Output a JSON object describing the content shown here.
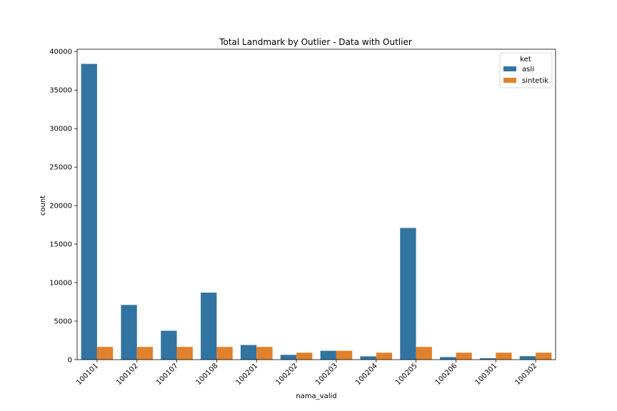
{
  "chart_data": {
    "type": "bar",
    "title": "Total Landmark by Outlier - Data with Outlier",
    "xlabel": "nama_valid",
    "ylabel": "count",
    "categories": [
      "100101",
      "100102",
      "100107",
      "100108",
      "100201",
      "100202",
      "100203",
      "100204",
      "100205",
      "100206",
      "100301",
      "100302"
    ],
    "series": [
      {
        "name": "asli",
        "color": "#3274a1",
        "values": [
          38400,
          7100,
          3750,
          8700,
          1900,
          620,
          1150,
          430,
          17100,
          330,
          180,
          450
        ]
      },
      {
        "name": "sintetik",
        "color": "#e1812c",
        "values": [
          1650,
          1650,
          1650,
          1650,
          1650,
          900,
          1150,
          900,
          1650,
          900,
          900,
          900
        ]
      }
    ],
    "ylim": [
      0,
      40300
    ],
    "yticks": [
      0,
      5000,
      10000,
      15000,
      20000,
      25000,
      30000,
      35000,
      40000
    ],
    "ytick_labels": [
      "0",
      "5000",
      "10000",
      "15000",
      "20000",
      "25000",
      "30000",
      "35000",
      "40000"
    ],
    "grid": false,
    "legend": {
      "title": "ket",
      "position": "top-right"
    }
  }
}
